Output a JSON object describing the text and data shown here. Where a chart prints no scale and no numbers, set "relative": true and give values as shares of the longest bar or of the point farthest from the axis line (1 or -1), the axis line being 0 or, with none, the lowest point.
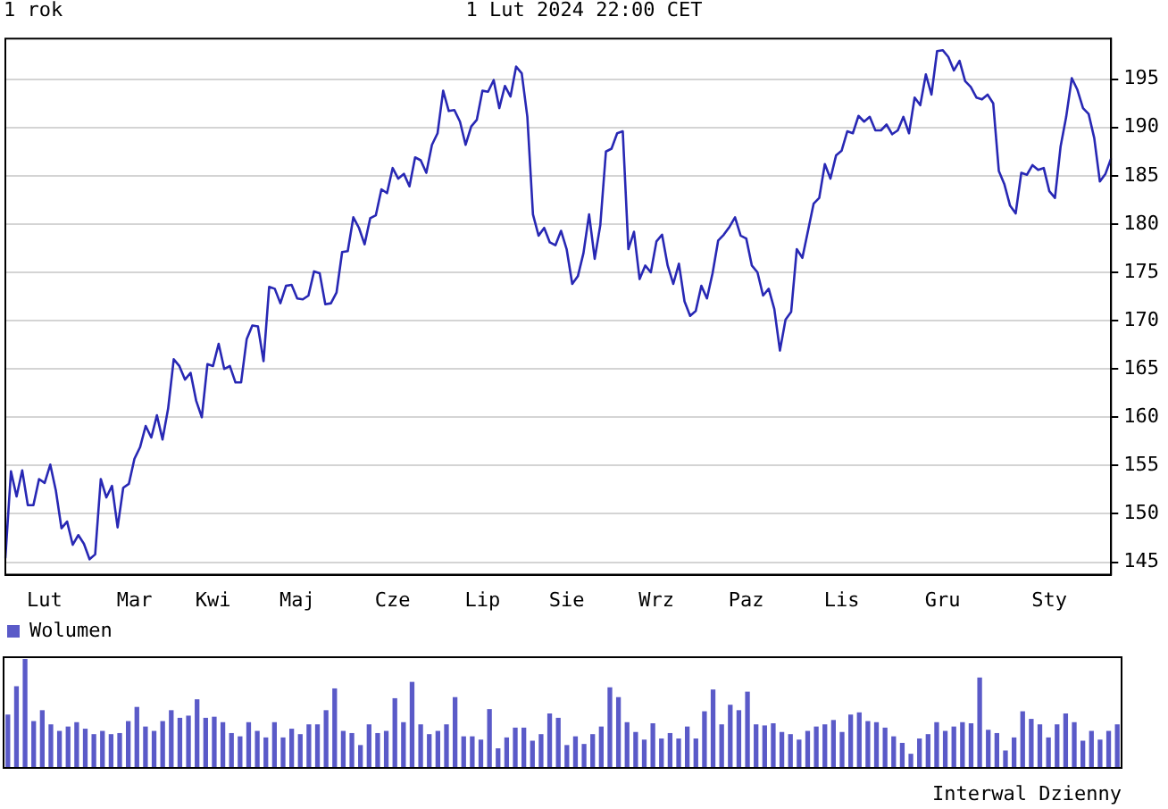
{
  "chart_data": [
    {
      "type": "line",
      "title": "1 rok",
      "subtitle": "1 Lut 2024 22:00 CET",
      "categories": [
        null,
        null,
        null,
        null,
        null,
        null,
        null,
        "Lut",
        null,
        null,
        null,
        null,
        null,
        null,
        null,
        null,
        null,
        null,
        null,
        null,
        null,
        null,
        null,
        "Mar",
        null,
        null,
        null,
        null,
        null,
        null,
        null,
        null,
        null,
        null,
        null,
        null,
        null,
        "Kwi",
        null,
        null,
        null,
        null,
        null,
        null,
        null,
        null,
        null,
        null,
        null,
        null,
        null,
        null,
        "Maj",
        null,
        null,
        null,
        null,
        null,
        null,
        null,
        null,
        null,
        null,
        null,
        null,
        null,
        null,
        null,
        null,
        "Cze",
        null,
        null,
        null,
        null,
        null,
        null,
        null,
        null,
        null,
        null,
        null,
        null,
        null,
        null,
        null,
        "Lip",
        null,
        null,
        null,
        null,
        null,
        null,
        null,
        null,
        null,
        null,
        null,
        null,
        null,
        null,
        "Sie",
        null,
        null,
        null,
        null,
        null,
        null,
        null,
        null,
        null,
        null,
        null,
        null,
        null,
        null,
        null,
        "Wrz",
        null,
        null,
        null,
        null,
        null,
        null,
        null,
        null,
        null,
        null,
        null,
        null,
        null,
        null,
        null,
        "Paz",
        null,
        null,
        null,
        null,
        null,
        null,
        null,
        null,
        null,
        null,
        null,
        null,
        null,
        null,
        null,
        null,
        "Lis",
        null,
        null,
        null,
        null,
        null,
        null,
        null,
        null,
        null,
        null,
        null,
        null,
        null,
        null,
        null,
        null,
        null,
        "Gru",
        null,
        null,
        null,
        null,
        null,
        null,
        null,
        null,
        null,
        null,
        null,
        null,
        null,
        null,
        null,
        null,
        null,
        null,
        "Sty",
        null,
        null,
        null,
        null,
        null,
        null,
        null,
        null,
        null,
        null,
        null
      ],
      "values": [
        145.4,
        154.4,
        151.8,
        154.5,
        150.9,
        150.9,
        153.6,
        153.2,
        155.1,
        152.4,
        148.5,
        149.2,
        146.8,
        147.8,
        146.9,
        145.3,
        145.8,
        153.6,
        151.7,
        152.9,
        148.6,
        152.7,
        153.1,
        155.7,
        156.9,
        159.1,
        157.9,
        160.2,
        157.7,
        160.9,
        166,
        165.3,
        163.9,
        164.6,
        161.7,
        160,
        165.5,
        165.3,
        167.6,
        165,
        165.3,
        163.6,
        163.6,
        168.1,
        169.5,
        169.4,
        165.8,
        173.5,
        173.3,
        171.8,
        173.6,
        173.7,
        172.3,
        172.2,
        172.6,
        175.1,
        174.9,
        171.7,
        171.8,
        172.9,
        177.1,
        177.2,
        180.7,
        179.6,
        177.9,
        180.6,
        180.9,
        183.6,
        183.2,
        185.8,
        184.7,
        185.2,
        183.9,
        186.9,
        186.6,
        185.3,
        188.2,
        189.4,
        193.8,
        191.7,
        191.8,
        190.6,
        188.2,
        190.1,
        190.8,
        193.8,
        193.7,
        194.9,
        192,
        194.3,
        193.2,
        196.3,
        195.6,
        191.1,
        181,
        178.8,
        179.6,
        178.1,
        177.8,
        179.3,
        177.4,
        173.8,
        174.6,
        177,
        181,
        176.4,
        179.9,
        187.5,
        187.8,
        189.4,
        189.6,
        177.4,
        179.2,
        174.3,
        175.7,
        175,
        178.2,
        178.9,
        175.7,
        173.8,
        175.9,
        172,
        170.5,
        171,
        173.6,
        172.3,
        174.9,
        178.3,
        178.9,
        179.7,
        180.7,
        178.8,
        178.5,
        175.7,
        175,
        172.6,
        173.3,
        171.2,
        166.9,
        170.1,
        170.9,
        177.4,
        176.5,
        179.3,
        182.1,
        182.7,
        186.2,
        184.7,
        187.1,
        187.6,
        189.6,
        189.4,
        191.2,
        190.6,
        191.1,
        189.7,
        189.7,
        190.3,
        189.3,
        189.7,
        191.1,
        189.4,
        193.1,
        192.3,
        195.5,
        193.4,
        197.9,
        198,
        197.3,
        195.9,
        196.9,
        194.8,
        194.2,
        193.1,
        192.9,
        193.4,
        192.5,
        185.5,
        184.1,
        181.9,
        181.1,
        185.3,
        185.1,
        186.1,
        185.6,
        185.8,
        183.4,
        182.7,
        188,
        191.1,
        195.1,
        193.9,
        192,
        191.4,
        188.9,
        184.4,
        185.2,
        186.8
      ],
      "color": "#2828b4",
      "ylim": [
        143.7,
        199.2
      ],
      "yticks": [
        145,
        150,
        155,
        160,
        165,
        170,
        175,
        180,
        185,
        190,
        195
      ],
      "grid": "y"
    },
    {
      "type": "bar",
      "relative": true,
      "legend": "top left",
      "annotations": [
        "Interwal Dzienny"
      ],
      "categories": [
        null,
        null,
        null,
        null,
        null,
        null,
        null,
        null,
        null,
        null,
        null,
        null,
        null,
        null,
        null,
        null,
        null,
        null,
        null,
        null,
        null,
        null,
        null,
        null,
        null,
        null,
        null,
        null,
        null,
        null,
        null,
        null,
        null,
        null,
        null,
        null,
        null,
        null,
        null,
        null,
        null,
        null,
        null,
        null,
        null,
        null,
        null,
        null,
        null,
        null,
        null,
        null,
        null,
        null,
        null,
        null,
        null,
        null,
        null,
        null,
        null,
        null,
        null,
        null,
        null,
        null,
        null,
        null,
        null,
        null,
        null,
        null,
        null,
        null,
        null,
        null,
        null,
        null,
        null,
        null,
        null,
        null,
        null,
        null,
        null,
        null,
        null,
        null,
        null,
        null,
        null,
        null,
        null,
        null,
        null,
        null,
        null,
        null,
        null,
        null,
        null,
        null,
        null,
        null,
        null,
        null,
        null,
        null,
        null,
        null,
        null,
        null,
        null,
        null,
        null,
        null,
        null,
        null,
        null,
        null,
        null,
        null,
        null,
        null,
        null,
        null,
        null,
        null,
        null,
        null
      ],
      "series": [
        {
          "name": "Wolumen",
          "color": "#5a5ac8",
          "values": [
            0.49,
            0.75,
            1,
            0.43,
            0.53,
            0.4,
            0.34,
            0.38,
            0.42,
            0.36,
            0.31,
            0.34,
            0.31,
            0.32,
            0.43,
            0.56,
            0.38,
            0.34,
            0.43,
            0.53,
            0.46,
            0.48,
            0.63,
            0.46,
            0.47,
            0.42,
            0.32,
            0.29,
            0.42,
            0.34,
            0.28,
            0.42,
            0.28,
            0.36,
            0.31,
            0.4,
            0.4,
            0.53,
            0.73,
            0.34,
            0.32,
            0.21,
            0.4,
            0.32,
            0.34,
            0.64,
            0.42,
            0.79,
            0.4,
            0.31,
            0.34,
            0.4,
            0.65,
            0.29,
            0.29,
            0.26,
            0.54,
            0.18,
            0.28,
            0.37,
            0.37,
            0.25,
            0.31,
            0.5,
            0.46,
            0.21,
            0.29,
            0.22,
            0.31,
            0.38,
            0.74,
            0.65,
            0.42,
            0.33,
            0.26,
            0.41,
            0.27,
            0.32,
            0.27,
            0.38,
            0.27,
            0.52,
            0.72,
            0.4,
            0.58,
            0.53,
            0.7,
            0.4,
            0.39,
            0.41,
            0.33,
            0.31,
            0.26,
            0.34,
            0.38,
            0.4,
            0.44,
            0.33,
            0.49,
            0.51,
            0.43,
            0.42,
            0.37,
            0.29,
            0.23,
            0.13,
            0.27,
            0.31,
            0.42,
            0.34,
            0.38,
            0.42,
            0.41,
            0.83,
            0.35,
            0.32,
            0.16,
            0.28,
            0.52,
            0.45,
            0.4,
            0.28,
            0.4,
            0.5,
            0.42,
            0.25,
            0.34,
            0.26,
            0.34,
            0.4
          ]
        }
      ]
    }
  ]
}
